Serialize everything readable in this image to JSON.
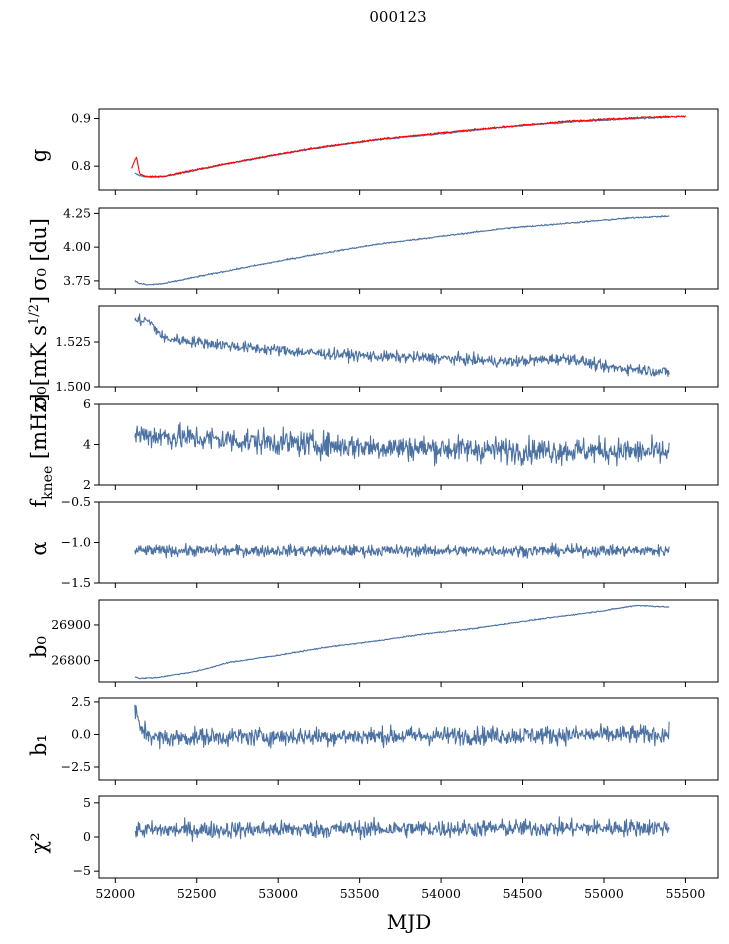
{
  "title": "000123",
  "colors": {
    "series": "#4c72a4",
    "model": "#ff0000"
  },
  "chart_data": {
    "type": "line",
    "title": "000123",
    "xlabel": "MJD",
    "xlim": [
      51900,
      55700
    ],
    "xticks": [
      52000,
      52500,
      53000,
      53500,
      54000,
      54500,
      55000,
      55500
    ],
    "xtick_labels": [
      "52000",
      "52500",
      "53000",
      "53500",
      "54000",
      "54500",
      "55000",
      "55500"
    ],
    "panels": [
      {
        "id": "g",
        "ylabel": "g",
        "ylim": [
          0.75,
          0.92
        ],
        "yticks": [
          0.8,
          0.9
        ],
        "ytick_labels": [
          "0.8",
          "0.9"
        ],
        "series": [
          {
            "name": "g",
            "color": "#4c72a4",
            "x": [
              52120,
              52150,
              52200,
              52300,
              52500,
              52800,
              53200,
              53600,
              54000,
              54400,
              54800,
              55200,
              55400
            ],
            "y": [
              0.785,
              0.78,
              0.777,
              0.778,
              0.792,
              0.812,
              0.836,
              0.855,
              0.868,
              0.882,
              0.893,
              0.9,
              0.903
            ],
            "noise": 0.001
          },
          {
            "name": "g model",
            "color": "#ff0000",
            "x": [
              52100,
              52130,
              52150,
              52200,
              52300,
              52500,
              52800,
              53200,
              53600,
              54000,
              54400,
              54800,
              55200,
              55500
            ],
            "y": [
              0.795,
              0.82,
              0.783,
              0.778,
              0.779,
              0.793,
              0.813,
              0.837,
              0.856,
              0.87,
              0.883,
              0.895,
              0.902,
              0.905
            ],
            "noise": 0.0012
          }
        ]
      },
      {
        "id": "sigma0-du",
        "ylabel": "σ₀ [du]",
        "ylim": [
          3.69,
          4.29
        ],
        "yticks": [
          3.75,
          4.0,
          4.25
        ],
        "ytick_labels": [
          "3.75",
          "4.00",
          "4.25"
        ],
        "series": [
          {
            "name": "sigma0 du",
            "color": "#4c72a4",
            "x": [
              52120,
              52150,
              52200,
              52300,
              52500,
              52800,
              53200,
              53600,
              54000,
              54400,
              54800,
              55200,
              55400
            ],
            "y": [
              3.75,
              3.73,
              3.72,
              3.73,
              3.78,
              3.85,
              3.94,
              4.02,
              4.08,
              4.14,
              4.18,
              4.22,
              4.23
            ],
            "noise": 0.004
          }
        ]
      },
      {
        "id": "sigma0-mk",
        "ylabel": "σ₀[mK s^1/2]",
        "ylim": [
          1.5,
          1.545
        ],
        "yticks": [
          1.5,
          1.525
        ],
        "ytick_labels": [
          "1.500",
          "1.525"
        ],
        "series": [
          {
            "name": "sigma0 mK",
            "color": "#4c72a4",
            "x": [
              52120,
              52200,
              52300,
              52500,
              52800,
              53200,
              53600,
              54000,
              54400,
              54800,
              55000,
              55200,
              55400
            ],
            "y": [
              1.537,
              1.537,
              1.527,
              1.525,
              1.522,
              1.519,
              1.517,
              1.516,
              1.514,
              1.516,
              1.511,
              1.51,
              1.508
            ],
            "noise": 0.0022
          }
        ]
      },
      {
        "id": "fknee",
        "ylabel": "f_knee [mHz]",
        "ylim": [
          2,
          6
        ],
        "yticks": [
          2,
          4,
          6
        ],
        "ytick_labels": [
          "2",
          "4",
          "6"
        ],
        "series": [
          {
            "name": "fknee",
            "color": "#4c72a4",
            "x": [
              52120,
              52500,
              53000,
              53500,
              54000,
              54500,
              55000,
              55400
            ],
            "y": [
              4.5,
              4.3,
              4.1,
              3.9,
              3.8,
              3.7,
              3.7,
              3.6
            ],
            "noise": 0.45
          }
        ]
      },
      {
        "id": "alpha",
        "ylabel": "α",
        "ylim": [
          -1.5,
          -0.5
        ],
        "yticks": [
          -1.5,
          -1.0,
          -0.5
        ],
        "ytick_labels": [
          "−1.5",
          "−1.0",
          "−0.5"
        ],
        "series": [
          {
            "name": "alpha",
            "color": "#4c72a4",
            "x": [
              52120,
              55400
            ],
            "y": [
              -1.1,
              -1.1
            ],
            "noise": 0.05
          }
        ]
      },
      {
        "id": "b0",
        "ylabel": "b₀",
        "ylim": [
          26740,
          26970
        ],
        "yticks": [
          26800,
          26900
        ],
        "ytick_labels": [
          "26800",
          "26900"
        ],
        "series": [
          {
            "name": "b0",
            "color": "#4c72a4",
            "x": [
              52120,
              52150,
              52250,
              52500,
              52700,
              53000,
              53300,
              53600,
              53900,
              54200,
              54500,
              54800,
              55000,
              55200,
              55400
            ],
            "y": [
              26755,
              26750,
              26752,
              26770,
              26795,
              26815,
              26838,
              26855,
              26875,
              26890,
              26910,
              26928,
              26940,
              26955,
              26950
            ],
            "noise": 1.2
          }
        ]
      },
      {
        "id": "b1",
        "ylabel": "b₁",
        "ylim": [
          -3.5,
          2.8
        ],
        "yticks": [
          -2.5,
          0.0,
          2.5
        ],
        "ytick_labels": [
          "−2.5",
          "0.0",
          "2.5"
        ],
        "series": [
          {
            "name": "b1",
            "color": "#4c72a4",
            "x": [
              52120,
              52150,
              52250,
              52500,
              55400
            ],
            "y": [
              2.0,
              0.5,
              -0.3,
              -0.2,
              0.0
            ],
            "noise": 0.5
          }
        ]
      },
      {
        "id": "chi2",
        "ylabel": "χ²",
        "ylim": [
          -6,
          6
        ],
        "yticks": [
          -5,
          0,
          5
        ],
        "ytick_labels": [
          "−5",
          "0",
          "5"
        ],
        "series": [
          {
            "name": "chi2",
            "color": "#4c72a4",
            "x": [
              52120,
              55400
            ],
            "y": [
              1.0,
              1.4
            ],
            "noise": 0.9
          }
        ]
      }
    ]
  }
}
